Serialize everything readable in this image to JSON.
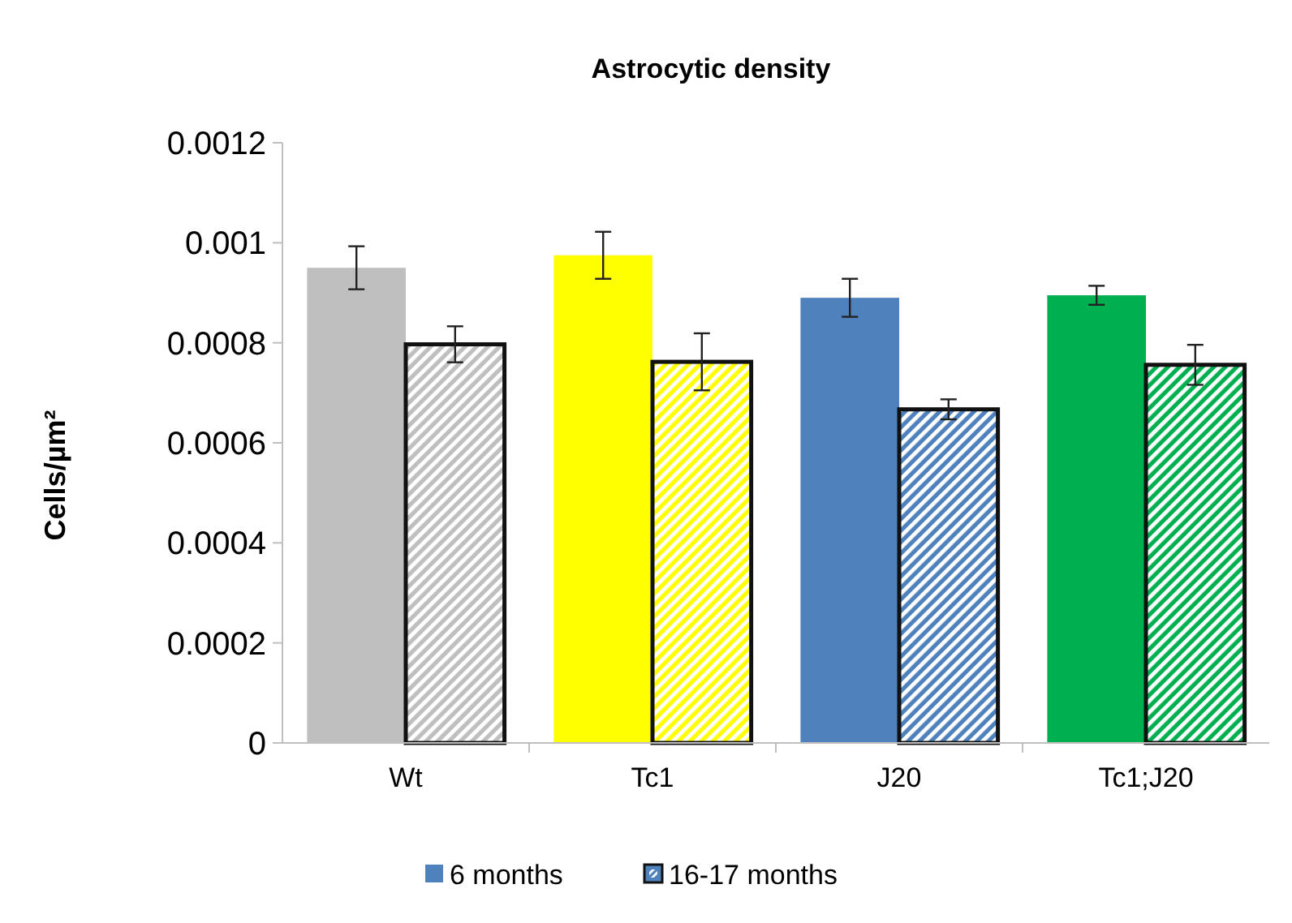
{
  "chart_data": {
    "type": "bar",
    "title": "Astrocytic density",
    "ylabel": "Cells/µm²",
    "categories": [
      "Wt",
      "Tc1",
      "J20",
      "Tc1;J20"
    ],
    "series": [
      {
        "name": "6 months",
        "color": "#4f81bd",
        "colors": [
          "#bfbfbf",
          "#ffff00",
          "#4f81bd",
          "#00b050"
        ],
        "values": [
          0.00095,
          0.000975,
          0.00089,
          0.000895
        ],
        "errors": [
          4.3e-05,
          4.7e-05,
          3.8e-05,
          1.9e-05
        ]
      },
      {
        "name": "16-17 months",
        "color": "#4f81bd",
        "colors": [
          "#bfbfbf",
          "#ffff00",
          "#4f81bd",
          "#00b050"
        ],
        "values": [
          0.000797,
          0.000762,
          0.000667,
          0.000756
        ],
        "errors": [
          3.6e-05,
          5.7e-05,
          2e-05,
          4e-05
        ]
      }
    ],
    "ylim": [
      0,
      0.0012
    ],
    "yticks": [
      0,
      0.0002,
      0.0004,
      0.0006,
      0.0008,
      0.001,
      0.0012
    ],
    "grid": false,
    "legend": "bottom"
  }
}
